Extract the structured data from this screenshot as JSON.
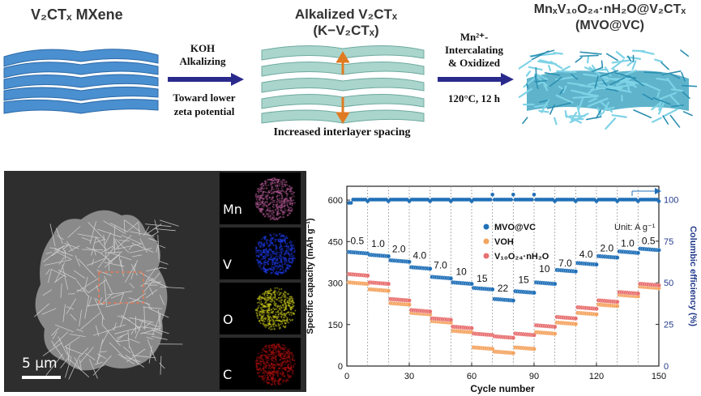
{
  "schematic": {
    "stage1_title": "V₂CTₓ MXene",
    "step1": {
      "line1": "KOH",
      "line2": "Alkalizing",
      "line3": "Toward lower",
      "line4": "zeta potential"
    },
    "stage2_title_line1": "Alkalized V₂CTₓ",
    "stage2_title_line2": "(K−V₂CTₓ)",
    "stage2_caption": "Increased  interlayer spacing",
    "step2": {
      "line1": "Mn²⁺-",
      "line2": "Intercalating",
      "line3": "& Oxidized",
      "line4": "120°C, 12 h"
    },
    "stage3_title_line1": "MnₓV₁₀O₂₄·nH₂O@V₂CTₓ",
    "stage3_title_line2": "(MVO@VC)"
  },
  "sem": {
    "scale_label": "5 µm",
    "eds_maps": [
      {
        "element": "Mn",
        "color": "#c060a0"
      },
      {
        "element": "V",
        "color": "#2040ff"
      },
      {
        "element": "O",
        "color": "#e0e020"
      },
      {
        "element": "C",
        "color": "#c01010"
      }
    ]
  },
  "chart_data": {
    "type": "scatter",
    "xlabel": "Cycle number",
    "ylabel": "Specific capacity (mAh g⁻¹)",
    "y2label": "Columbic efficiency (%)",
    "xlim": [
      0,
      150
    ],
    "ylim": [
      0,
      650
    ],
    "y2lim": [
      0,
      108
    ],
    "xticks": [
      0,
      30,
      60,
      90,
      120,
      150
    ],
    "yticks": [
      0,
      150,
      300,
      450,
      600
    ],
    "y2ticks": [
      0,
      25,
      50,
      75,
      100
    ],
    "unit_note": "Unit: A g⁻¹",
    "rate_labels": [
      {
        "text": "0.5",
        "cycle": 5,
        "capacity": 440
      },
      {
        "text": "1.0",
        "cycle": 15,
        "capacity": 430
      },
      {
        "text": "2.0",
        "cycle": 25,
        "capacity": 412
      },
      {
        "text": "4.0",
        "cycle": 35,
        "capacity": 388
      },
      {
        "text": "7.0",
        "cycle": 45,
        "capacity": 353
      },
      {
        "text": "10",
        "cycle": 55,
        "capacity": 330
      },
      {
        "text": "15",
        "cycle": 65,
        "capacity": 305
      },
      {
        "text": "22",
        "cycle": 75,
        "capacity": 270
      },
      {
        "text": "15",
        "cycle": 85,
        "capacity": 300
      },
      {
        "text": "10",
        "cycle": 95,
        "capacity": 340
      },
      {
        "text": "7.0",
        "cycle": 105,
        "capacity": 360
      },
      {
        "text": "4.0",
        "cycle": 115,
        "capacity": 392
      },
      {
        "text": "2.0",
        "cycle": 125,
        "capacity": 415
      },
      {
        "text": "1.0",
        "cycle": 135,
        "capacity": 432
      },
      {
        "text": "0.5",
        "cycle": 145,
        "capacity": 440
      }
    ],
    "series": [
      {
        "name": "MVO@VC",
        "color": "#2070b8",
        "values": [
          410,
          400,
          380,
          355,
          320,
          300,
          280,
          240,
          268,
          300,
          345,
          370,
          395,
          412,
          422
        ]
      },
      {
        "name": "VOH",
        "color": "#f4a460",
        "values": [
          300,
          275,
          225,
          190,
          160,
          125,
          65,
          50,
          65,
          120,
          155,
          190,
          220,
          255,
          285
        ]
      },
      {
        "name": "V₁₀O₂₄·nH₂O",
        "color": "#e87070",
        "values": [
          330,
          300,
          240,
          200,
          170,
          140,
          115,
          105,
          115,
          145,
          175,
          210,
          235,
          265,
          295
        ]
      }
    ],
    "efficiency": {
      "name": "Columbic efficiency",
      "color": "#2070b8",
      "value": 100
    }
  }
}
